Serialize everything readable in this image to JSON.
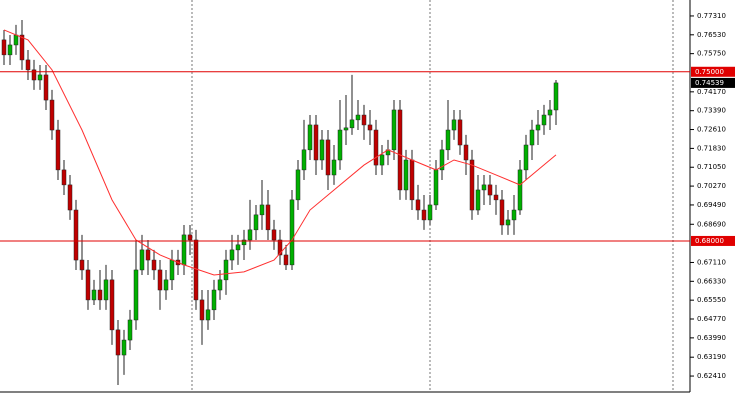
{
  "chart_data": {
    "type": "candlestick",
    "open": [
      0.7632,
      0.757,
      0.7611,
      0.7652,
      0.7549,
      0.7508,
      0.7466,
      0.7487,
      0.7383,
      0.7259,
      0.7094,
      0.7032,
      0.6928,
      0.6721,
      0.668,
      0.6556,
      0.6597,
      0.6556,
      0.6639,
      0.6432,
      0.6328,
      0.639,
      0.6473,
      0.668,
      0.6763,
      0.6721,
      0.668,
      0.6597,
      0.6639,
      0.6721,
      0.6701,
      0.6825,
      0.6804,
      0.6556,
      0.6473,
      0.6515,
      0.6597,
      0.6639,
      0.6721,
      0.6763,
      0.6784,
      0.6804,
      0.6846,
      0.6908,
      0.6949,
      0.6846,
      0.6804,
      0.6742,
      0.6701,
      0.697,
      0.7094,
      0.7177,
      0.728,
      0.7135,
      0.7218,
      0.7073,
      0.7135,
      0.7259,
      0.7268,
      0.7301,
      0.7321,
      0.728,
      0.7259,
      0.7114,
      0.7156,
      0.7177,
      0.7342,
      0.7011,
      0.7135,
      0.697,
      0.6928,
      0.6887,
      0.6949,
      0.7094,
      0.7177,
      0.7259,
      0.7301,
      0.7197,
      0.7135,
      0.6928,
      0.7011,
      0.7032,
      0.699,
      0.697,
      0.6866,
      0.6887,
      0.6928,
      0.7094,
      0.7197,
      0.7259,
      0.728,
      0.7321,
      0.7342
    ],
    "high": [
      0.7673,
      0.7652,
      0.7694,
      0.7714,
      0.759,
      0.7549,
      0.7528,
      0.7528,
      0.7425,
      0.7301,
      0.7135,
      0.7073,
      0.697,
      0.6825,
      0.6721,
      0.6639,
      0.668,
      0.6701,
      0.668,
      0.6473,
      0.6432,
      0.6515,
      0.6804,
      0.6825,
      0.6804,
      0.6763,
      0.6721,
      0.668,
      0.6763,
      0.6763,
      0.6866,
      0.6866,
      0.6846,
      0.6597,
      0.6597,
      0.6639,
      0.668,
      0.6763,
      0.6825,
      0.6825,
      0.6846,
      0.697,
      0.6949,
      0.7052,
      0.7011,
      0.6887,
      0.6846,
      0.6784,
      0.7011,
      0.7135,
      0.7301,
      0.7321,
      0.7321,
      0.7259,
      0.7259,
      0.7197,
      0.7383,
      0.7404,
      0.7487,
      0.7383,
      0.7363,
      0.7342,
      0.7301,
      0.7197,
      0.7218,
      0.7383,
      0.7383,
      0.7177,
      0.7177,
      0.7032,
      0.699,
      0.699,
      0.7135,
      0.7218,
      0.7383,
      0.7342,
      0.7342,
      0.7239,
      0.7177,
      0.7073,
      0.7073,
      0.7073,
      0.7032,
      0.7011,
      0.6928,
      0.699,
      0.7135,
      0.7239,
      0.7301,
      0.7342,
      0.7363,
      0.7383,
      0.7466
    ],
    "low": [
      0.7528,
      0.7528,
      0.757,
      0.7508,
      0.7466,
      0.7425,
      0.7425,
      0.7342,
      0.7218,
      0.7052,
      0.699,
      0.6887,
      0.668,
      0.6639,
      0.6515,
      0.6535,
      0.6515,
      0.6515,
      0.637,
      0.6204,
      0.6246,
      0.6349,
      0.6432,
      0.6659,
      0.6659,
      0.6639,
      0.6515,
      0.6556,
      0.6597,
      0.6659,
      0.6659,
      0.6742,
      0.6515,
      0.637,
      0.6432,
      0.6473,
      0.6556,
      0.6577,
      0.668,
      0.6701,
      0.6721,
      0.6763,
      0.6804,
      0.6846,
      0.6804,
      0.6763,
      0.6701,
      0.668,
      0.668,
      0.6928,
      0.7052,
      0.7135,
      0.7073,
      0.7094,
      0.7011,
      0.7032,
      0.7094,
      0.7197,
      0.7239,
      0.7259,
      0.7218,
      0.7197,
      0.7073,
      0.7073,
      0.7114,
      0.7135,
      0.697,
      0.697,
      0.6928,
      0.6887,
      0.6846,
      0.6866,
      0.6928,
      0.7052,
      0.7135,
      0.7218,
      0.7156,
      0.7073,
      0.6887,
      0.6908,
      0.6949,
      0.6949,
      0.6908,
      0.6825,
      0.6825,
      0.6825,
      0.6908,
      0.7052,
      0.7135,
      0.7197,
      0.7239,
      0.7259,
      0.728
    ],
    "close": [
      0.757,
      0.7611,
      0.7652,
      0.7549,
      0.7508,
      0.7466,
      0.7487,
      0.7383,
      0.7259,
      0.7094,
      0.7032,
      0.6928,
      0.6721,
      0.668,
      0.6556,
      0.6597,
      0.6556,
      0.6639,
      0.6432,
      0.6328,
      0.639,
      0.6473,
      0.668,
      0.6763,
      0.6721,
      0.668,
      0.6597,
      0.6639,
      0.6721,
      0.6701,
      0.6825,
      0.6804,
      0.6556,
      0.6473,
      0.6515,
      0.6597,
      0.6639,
      0.6721,
      0.6763,
      0.6784,
      0.6804,
      0.6846,
      0.6908,
      0.6949,
      0.6846,
      0.6804,
      0.6742,
      0.6701,
      0.697,
      0.7094,
      0.7177,
      0.728,
      0.7135,
      0.7218,
      0.7073,
      0.7135,
      0.7259,
      0.7268,
      0.7301,
      0.7321,
      0.728,
      0.7259,
      0.7114,
      0.7156,
      0.7177,
      0.7342,
      0.7011,
      0.7135,
      0.697,
      0.6928,
      0.6887,
      0.6949,
      0.7094,
      0.7177,
      0.7259,
      0.7301,
      0.7197,
      0.7135,
      0.6928,
      0.7011,
      0.7032,
      0.699,
      0.697,
      0.6866,
      0.6887,
      0.6928,
      0.7094,
      0.7197,
      0.7259,
      0.728,
      0.7321,
      0.7342,
      0.74539
    ],
    "up_color": "#00b000",
    "down_color": "#c00000",
    "ma": {
      "x": [
        0,
        4,
        8,
        13,
        18,
        22,
        26,
        30,
        35,
        40,
        45,
        48,
        51,
        55,
        60,
        64,
        68,
        72,
        75,
        78,
        82,
        86,
        89,
        92
      ],
      "values": [
        0.7673,
        0.7632,
        0.7508,
        0.7259,
        0.697,
        0.6804,
        0.6742,
        0.6701,
        0.6659,
        0.6672,
        0.6721,
        0.6804,
        0.6928,
        0.7011,
        0.7114,
        0.7177,
        0.7135,
        0.7094,
        0.7135,
        0.7114,
        0.7073,
        0.7032,
        0.7094,
        0.7156
      ],
      "color": "#ff3030"
    },
    "hlines": [
      {
        "value": 0.75,
        "label": "0.75000"
      },
      {
        "value": 0.68,
        "label": "0.68000"
      }
    ],
    "hline_color": "#e00000",
    "last_price": {
      "value": 0.74539,
      "label": "0.74539"
    },
    "ylim": [
      0.6175,
      0.7797
    ],
    "yticks": [
      {
        "value": 0.7731,
        "label": "0.77310"
      },
      {
        "value": 0.7653,
        "label": "0.76530"
      },
      {
        "value": 0.7575,
        "label": "0.75750"
      },
      {
        "value": 0.7417,
        "label": "0.74170"
      },
      {
        "value": 0.7339,
        "label": "0.73390"
      },
      {
        "value": 0.7261,
        "label": "0.72610"
      },
      {
        "value": 0.7183,
        "label": "0.71830"
      },
      {
        "value": 0.7105,
        "label": "0.71050"
      },
      {
        "value": 0.7027,
        "label": "0.70270"
      },
      {
        "value": 0.6949,
        "label": "0.69490"
      },
      {
        "value": 0.6869,
        "label": "0.68690"
      },
      {
        "value": 0.6711,
        "label": "0.67110"
      },
      {
        "value": 0.6633,
        "label": "0.66330"
      },
      {
        "value": 0.6555,
        "label": "0.65550"
      },
      {
        "value": 0.6477,
        "label": "0.64770"
      },
      {
        "value": 0.6399,
        "label": "0.63990"
      },
      {
        "value": 0.6319,
        "label": "0.63190"
      },
      {
        "value": 0.6241,
        "label": "0.62410"
      }
    ]
  }
}
